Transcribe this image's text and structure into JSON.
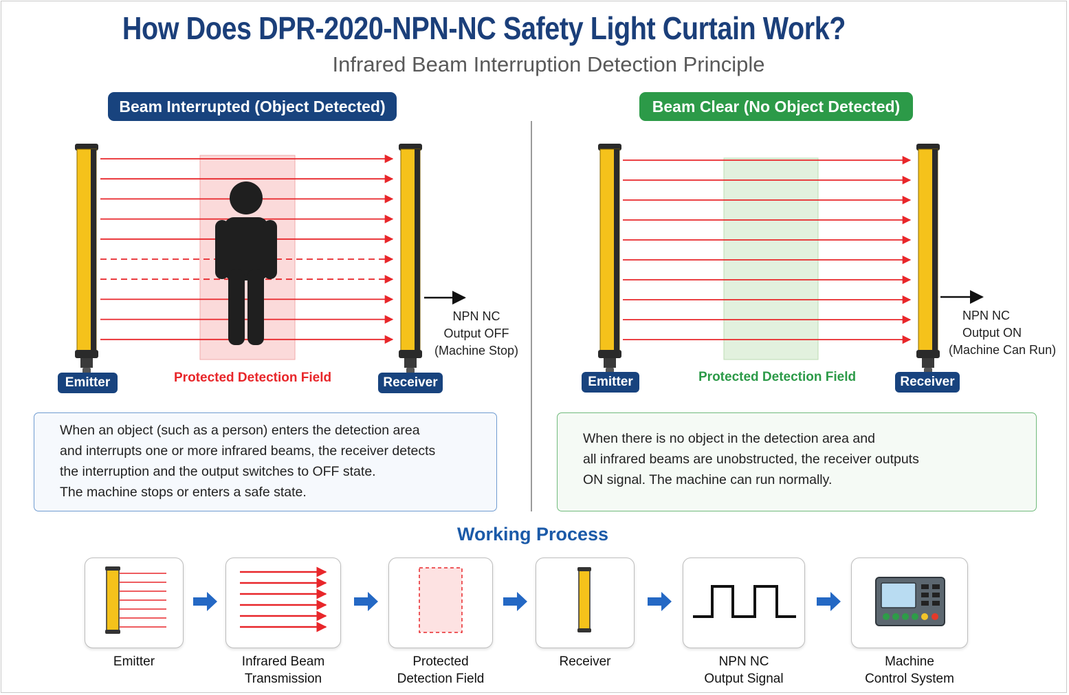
{
  "title": "How Does DPR-2020-NPN-NC Safety Light Curtain Work?",
  "subtitle": "Infrared Beam Interruption Detection Principle",
  "left_panel": {
    "heading": "Beam Interrupted (Object Detected)",
    "emitter_label": "Emitter",
    "receiver_label": "Receiver",
    "field_label": "Protected Detection Field",
    "output_lines": [
      "NPN NC",
      "Output OFF",
      "(Machine Stop)"
    ],
    "description": [
      "When an object (such as a person) enters the detection area",
      "and interrupts one or more infrared beams, the receiver detects",
      "the interruption and the output switches to OFF state.",
      "The machine stops or enters a safe state."
    ]
  },
  "right_panel": {
    "heading": "Beam Clear (No Object Detected)",
    "emitter_label": "Emitter",
    "receiver_label": "Receiver",
    "field_label": "Protected Detection Field",
    "output_lines": [
      "NPN NC",
      "Output ON",
      "(Machine Can Run)"
    ],
    "description": [
      "When there is no object in the detection area and",
      "all infrared beams are unobstructed, the receiver outputs",
      "ON signal. The machine can run normally."
    ]
  },
  "process": {
    "title": "Working Process",
    "steps": [
      {
        "label": [
          "Emitter"
        ],
        "icon": "emitter-icon"
      },
      {
        "label": [
          "Infrared Beam",
          "Transmission"
        ],
        "icon": "infrared-beams-icon"
      },
      {
        "label": [
          "Protected",
          "Detection Field"
        ],
        "icon": "detection-field-icon"
      },
      {
        "label": [
          "Receiver"
        ],
        "icon": "receiver-icon"
      },
      {
        "label": [
          "NPN NC",
          "Output Signal"
        ],
        "icon": "square-wave-icon"
      },
      {
        "label": [
          "Machine",
          "Control System"
        ],
        "icon": "control-panel-icon"
      }
    ]
  },
  "colors": {
    "title_blue": "#1b3f7a",
    "process_blue": "#1b5aa8",
    "beam_red": "#e8262a",
    "curtain_yellow": "#f5c21b",
    "field_red_text": "#e8262a",
    "field_green_text": "#2c9a48",
    "pill_blue": "#18437e",
    "pill_green": "#2c9a48",
    "arrow_blue": "#2468c4"
  }
}
